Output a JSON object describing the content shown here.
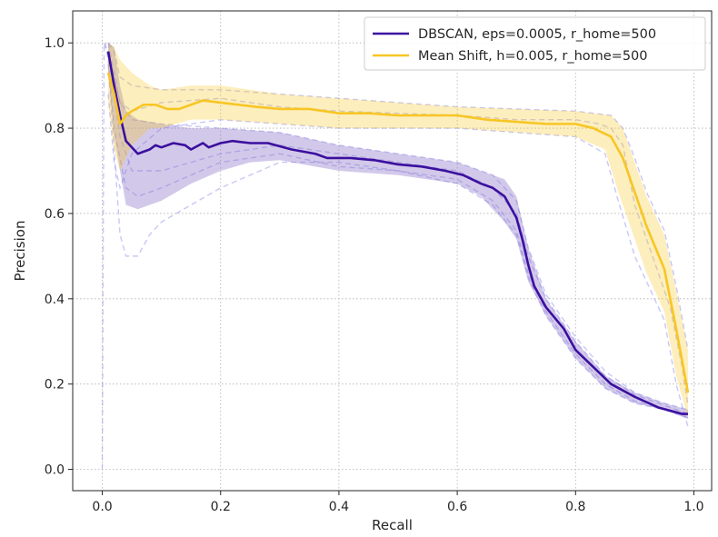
{
  "chart_data": {
    "type": "line",
    "xlabel": "Recall",
    "ylabel": "Precision",
    "xlim": [
      -0.05,
      1.03
    ],
    "ylim": [
      -0.05,
      1.075
    ],
    "xticks": [
      0.0,
      0.2,
      0.4,
      0.6,
      0.8,
      1.0
    ],
    "yticks": [
      0.0,
      0.2,
      0.4,
      0.6,
      0.8,
      1.0
    ],
    "tick_labels_x": [
      "0.0",
      "0.2",
      "0.4",
      "0.6",
      "0.8",
      "1.0"
    ],
    "tick_labels_y": [
      "0.0",
      "0.2",
      "0.4",
      "0.6",
      "0.8",
      "1.0"
    ],
    "grid": true,
    "legend_position": "top-right",
    "series": [
      {
        "name": "DBSCAN, eps=0.0005, r_home=500",
        "color": "#3b0f9e",
        "band_color": "#7e63c4",
        "mean": [
          [
            0.01,
            0.98
          ],
          [
            0.02,
            0.9
          ],
          [
            0.03,
            0.83
          ],
          [
            0.04,
            0.77
          ],
          [
            0.06,
            0.74
          ],
          [
            0.08,
            0.75
          ],
          [
            0.09,
            0.76
          ],
          [
            0.1,
            0.755
          ],
          [
            0.12,
            0.765
          ],
          [
            0.14,
            0.76
          ],
          [
            0.15,
            0.75
          ],
          [
            0.17,
            0.765
          ],
          [
            0.18,
            0.755
          ],
          [
            0.2,
            0.765
          ],
          [
            0.22,
            0.77
          ],
          [
            0.25,
            0.765
          ],
          [
            0.28,
            0.765
          ],
          [
            0.32,
            0.75
          ],
          [
            0.36,
            0.74
          ],
          [
            0.38,
            0.73
          ],
          [
            0.42,
            0.73
          ],
          [
            0.46,
            0.725
          ],
          [
            0.5,
            0.715
          ],
          [
            0.54,
            0.71
          ],
          [
            0.58,
            0.7
          ],
          [
            0.61,
            0.69
          ],
          [
            0.64,
            0.67
          ],
          [
            0.66,
            0.66
          ],
          [
            0.68,
            0.64
          ],
          [
            0.7,
            0.59
          ],
          [
            0.71,
            0.54
          ],
          [
            0.72,
            0.48
          ],
          [
            0.73,
            0.43
          ],
          [
            0.75,
            0.38
          ],
          [
            0.78,
            0.33
          ],
          [
            0.8,
            0.28
          ],
          [
            0.83,
            0.24
          ],
          [
            0.86,
            0.2
          ],
          [
            0.9,
            0.17
          ],
          [
            0.94,
            0.145
          ],
          [
            0.98,
            0.13
          ],
          [
            0.99,
            0.13
          ]
        ],
        "band_upper": [
          [
            0.01,
            1.0
          ],
          [
            0.02,
            0.99
          ],
          [
            0.03,
            0.9
          ],
          [
            0.04,
            0.84
          ],
          [
            0.06,
            0.82
          ],
          [
            0.1,
            0.81
          ],
          [
            0.15,
            0.8
          ],
          [
            0.2,
            0.8
          ],
          [
            0.3,
            0.79
          ],
          [
            0.4,
            0.76
          ],
          [
            0.5,
            0.74
          ],
          [
            0.6,
            0.72
          ],
          [
            0.64,
            0.7
          ],
          [
            0.68,
            0.68
          ],
          [
            0.7,
            0.64
          ],
          [
            0.72,
            0.52
          ],
          [
            0.75,
            0.4
          ],
          [
            0.8,
            0.3
          ],
          [
            0.85,
            0.22
          ],
          [
            0.9,
            0.18
          ],
          [
            0.95,
            0.155
          ],
          [
            0.99,
            0.14
          ]
        ],
        "band_lower": [
          [
            0.01,
            0.93
          ],
          [
            0.02,
            0.78
          ],
          [
            0.03,
            0.7
          ],
          [
            0.04,
            0.62
          ],
          [
            0.06,
            0.61
          ],
          [
            0.1,
            0.63
          ],
          [
            0.15,
            0.67
          ],
          [
            0.2,
            0.7
          ],
          [
            0.25,
            0.72
          ],
          [
            0.3,
            0.725
          ],
          [
            0.4,
            0.7
          ],
          [
            0.5,
            0.69
          ],
          [
            0.6,
            0.67
          ],
          [
            0.64,
            0.64
          ],
          [
            0.68,
            0.58
          ],
          [
            0.7,
            0.54
          ],
          [
            0.72,
            0.44
          ],
          [
            0.75,
            0.36
          ],
          [
            0.8,
            0.26
          ],
          [
            0.85,
            0.19
          ],
          [
            0.9,
            0.155
          ],
          [
            0.95,
            0.14
          ],
          [
            0.99,
            0.12
          ]
        ]
      },
      {
        "name": "Mean Shift, h=0.005, r_home=500",
        "color": "#f7c624",
        "band_color": "#f7c624",
        "mean": [
          [
            0.01,
            0.93
          ],
          [
            0.02,
            0.88
          ],
          [
            0.03,
            0.81
          ],
          [
            0.04,
            0.83
          ],
          [
            0.05,
            0.84
          ],
          [
            0.07,
            0.855
          ],
          [
            0.09,
            0.855
          ],
          [
            0.11,
            0.845
          ],
          [
            0.13,
            0.845
          ],
          [
            0.15,
            0.855
          ],
          [
            0.17,
            0.865
          ],
          [
            0.2,
            0.86
          ],
          [
            0.23,
            0.855
          ],
          [
            0.26,
            0.85
          ],
          [
            0.3,
            0.845
          ],
          [
            0.35,
            0.845
          ],
          [
            0.4,
            0.835
          ],
          [
            0.45,
            0.835
          ],
          [
            0.5,
            0.83
          ],
          [
            0.55,
            0.83
          ],
          [
            0.6,
            0.83
          ],
          [
            0.65,
            0.82
          ],
          [
            0.7,
            0.815
          ],
          [
            0.75,
            0.81
          ],
          [
            0.8,
            0.81
          ],
          [
            0.83,
            0.8
          ],
          [
            0.86,
            0.78
          ],
          [
            0.88,
            0.73
          ],
          [
            0.9,
            0.65
          ],
          [
            0.92,
            0.57
          ],
          [
            0.95,
            0.47
          ],
          [
            0.97,
            0.33
          ],
          [
            0.99,
            0.18
          ]
        ],
        "band_upper": [
          [
            0.01,
            1.0
          ],
          [
            0.02,
            0.99
          ],
          [
            0.03,
            0.96
          ],
          [
            0.05,
            0.93
          ],
          [
            0.08,
            0.9
          ],
          [
            0.1,
            0.89
          ],
          [
            0.15,
            0.9
          ],
          [
            0.2,
            0.9
          ],
          [
            0.3,
            0.88
          ],
          [
            0.4,
            0.87
          ],
          [
            0.5,
            0.86
          ],
          [
            0.6,
            0.85
          ],
          [
            0.7,
            0.845
          ],
          [
            0.8,
            0.84
          ],
          [
            0.86,
            0.83
          ],
          [
            0.88,
            0.8
          ],
          [
            0.9,
            0.72
          ],
          [
            0.92,
            0.64
          ],
          [
            0.95,
            0.55
          ],
          [
            0.97,
            0.42
          ],
          [
            0.99,
            0.28
          ]
        ],
        "band_lower": [
          [
            0.01,
            0.86
          ],
          [
            0.02,
            0.75
          ],
          [
            0.03,
            0.7
          ],
          [
            0.05,
            0.76
          ],
          [
            0.08,
            0.8
          ],
          [
            0.1,
            0.8
          ],
          [
            0.15,
            0.82
          ],
          [
            0.2,
            0.82
          ],
          [
            0.3,
            0.81
          ],
          [
            0.4,
            0.8
          ],
          [
            0.5,
            0.8
          ],
          [
            0.6,
            0.8
          ],
          [
            0.7,
            0.79
          ],
          [
            0.8,
            0.78
          ],
          [
            0.85,
            0.75
          ],
          [
            0.87,
            0.66
          ],
          [
            0.9,
            0.54
          ],
          [
            0.92,
            0.46
          ],
          [
            0.95,
            0.37
          ],
          [
            0.97,
            0.22
          ],
          [
            0.99,
            0.12
          ]
        ]
      }
    ],
    "individual_runs": {
      "color": "#9b9bef",
      "runs": [
        [
          [
            0.0,
            0.0
          ],
          [
            0.003,
            1.0
          ],
          [
            0.01,
            0.97
          ],
          [
            0.02,
            0.88
          ],
          [
            0.03,
            0.78
          ],
          [
            0.05,
            0.7
          ],
          [
            0.1,
            0.7
          ],
          [
            0.2,
            0.74
          ],
          [
            0.3,
            0.76
          ],
          [
            0.4,
            0.74
          ],
          [
            0.5,
            0.72
          ],
          [
            0.6,
            0.7
          ],
          [
            0.66,
            0.66
          ],
          [
            0.7,
            0.6
          ],
          [
            0.72,
            0.5
          ],
          [
            0.75,
            0.4
          ],
          [
            0.8,
            0.3
          ],
          [
            0.85,
            0.22
          ],
          [
            0.9,
            0.175
          ],
          [
            0.95,
            0.15
          ],
          [
            0.99,
            0.13
          ]
        ],
        [
          [
            0.005,
            1.0
          ],
          [
            0.01,
            0.96
          ],
          [
            0.02,
            0.8
          ],
          [
            0.04,
            0.66
          ],
          [
            0.06,
            0.64
          ],
          [
            0.1,
            0.66
          ],
          [
            0.2,
            0.72
          ],
          [
            0.3,
            0.74
          ],
          [
            0.4,
            0.71
          ],
          [
            0.5,
            0.7
          ],
          [
            0.6,
            0.68
          ],
          [
            0.66,
            0.63
          ],
          [
            0.7,
            0.56
          ],
          [
            0.72,
            0.46
          ],
          [
            0.75,
            0.37
          ],
          [
            0.8,
            0.27
          ],
          [
            0.85,
            0.2
          ],
          [
            0.9,
            0.16
          ],
          [
            0.95,
            0.14
          ],
          [
            0.99,
            0.12
          ]
        ],
        [
          [
            0.01,
            1.0
          ],
          [
            0.02,
            0.93
          ],
          [
            0.03,
            0.86
          ],
          [
            0.05,
            0.82
          ],
          [
            0.1,
            0.81
          ],
          [
            0.2,
            0.8
          ],
          [
            0.3,
            0.79
          ],
          [
            0.4,
            0.76
          ],
          [
            0.5,
            0.74
          ],
          [
            0.6,
            0.72
          ],
          [
            0.66,
            0.69
          ],
          [
            0.7,
            0.63
          ],
          [
            0.72,
            0.52
          ],
          [
            0.75,
            0.41
          ],
          [
            0.8,
            0.31
          ],
          [
            0.85,
            0.23
          ],
          [
            0.9,
            0.18
          ],
          [
            0.95,
            0.155
          ],
          [
            0.99,
            0.14
          ]
        ],
        [
          [
            0.01,
            0.95
          ],
          [
            0.02,
            0.75
          ],
          [
            0.03,
            0.55
          ],
          [
            0.04,
            0.5
          ],
          [
            0.06,
            0.5
          ],
          [
            0.08,
            0.55
          ],
          [
            0.1,
            0.58
          ],
          [
            0.15,
            0.62
          ],
          [
            0.2,
            0.66
          ],
          [
            0.3,
            0.72
          ],
          [
            0.4,
            0.72
          ],
          [
            0.5,
            0.7
          ],
          [
            0.6,
            0.67
          ],
          [
            0.66,
            0.62
          ],
          [
            0.7,
            0.55
          ],
          [
            0.72,
            0.45
          ],
          [
            0.75,
            0.36
          ],
          [
            0.8,
            0.26
          ],
          [
            0.85,
            0.19
          ],
          [
            0.9,
            0.155
          ],
          [
            0.95,
            0.14
          ],
          [
            0.99,
            0.12
          ]
        ],
        [
          [
            0.01,
            1.0
          ],
          [
            0.02,
            0.98
          ],
          [
            0.03,
            0.92
          ],
          [
            0.05,
            0.9
          ],
          [
            0.1,
            0.89
          ],
          [
            0.2,
            0.89
          ],
          [
            0.3,
            0.88
          ],
          [
            0.4,
            0.87
          ],
          [
            0.5,
            0.86
          ],
          [
            0.6,
            0.85
          ],
          [
            0.7,
            0.845
          ],
          [
            0.8,
            0.84
          ],
          [
            0.86,
            0.83
          ],
          [
            0.88,
            0.8
          ],
          [
            0.9,
            0.73
          ],
          [
            0.92,
            0.65
          ],
          [
            0.95,
            0.56
          ],
          [
            0.97,
            0.43
          ],
          [
            0.99,
            0.28
          ]
        ],
        [
          [
            0.01,
            0.88
          ],
          [
            0.02,
            0.72
          ],
          [
            0.03,
            0.66
          ],
          [
            0.05,
            0.74
          ],
          [
            0.1,
            0.8
          ],
          [
            0.2,
            0.82
          ],
          [
            0.3,
            0.81
          ],
          [
            0.4,
            0.8
          ],
          [
            0.5,
            0.8
          ],
          [
            0.6,
            0.8
          ],
          [
            0.7,
            0.79
          ],
          [
            0.8,
            0.78
          ],
          [
            0.85,
            0.74
          ],
          [
            0.87,
            0.64
          ],
          [
            0.9,
            0.5
          ],
          [
            0.92,
            0.44
          ],
          [
            0.95,
            0.35
          ],
          [
            0.97,
            0.2
          ],
          [
            0.99,
            0.1
          ]
        ],
        [
          [
            0.01,
            0.97
          ],
          [
            0.03,
            0.86
          ],
          [
            0.05,
            0.84
          ],
          [
            0.1,
            0.86
          ],
          [
            0.2,
            0.87
          ],
          [
            0.3,
            0.85
          ],
          [
            0.4,
            0.84
          ],
          [
            0.5,
            0.835
          ],
          [
            0.6,
            0.83
          ],
          [
            0.7,
            0.82
          ],
          [
            0.8,
            0.82
          ],
          [
            0.84,
            0.81
          ],
          [
            0.86,
            0.8
          ],
          [
            0.88,
            0.76
          ],
          [
            0.9,
            0.62
          ],
          [
            0.93,
            0.5
          ],
          [
            0.96,
            0.38
          ],
          [
            0.98,
            0.24
          ],
          [
            0.99,
            0.15
          ]
        ]
      ]
    }
  }
}
